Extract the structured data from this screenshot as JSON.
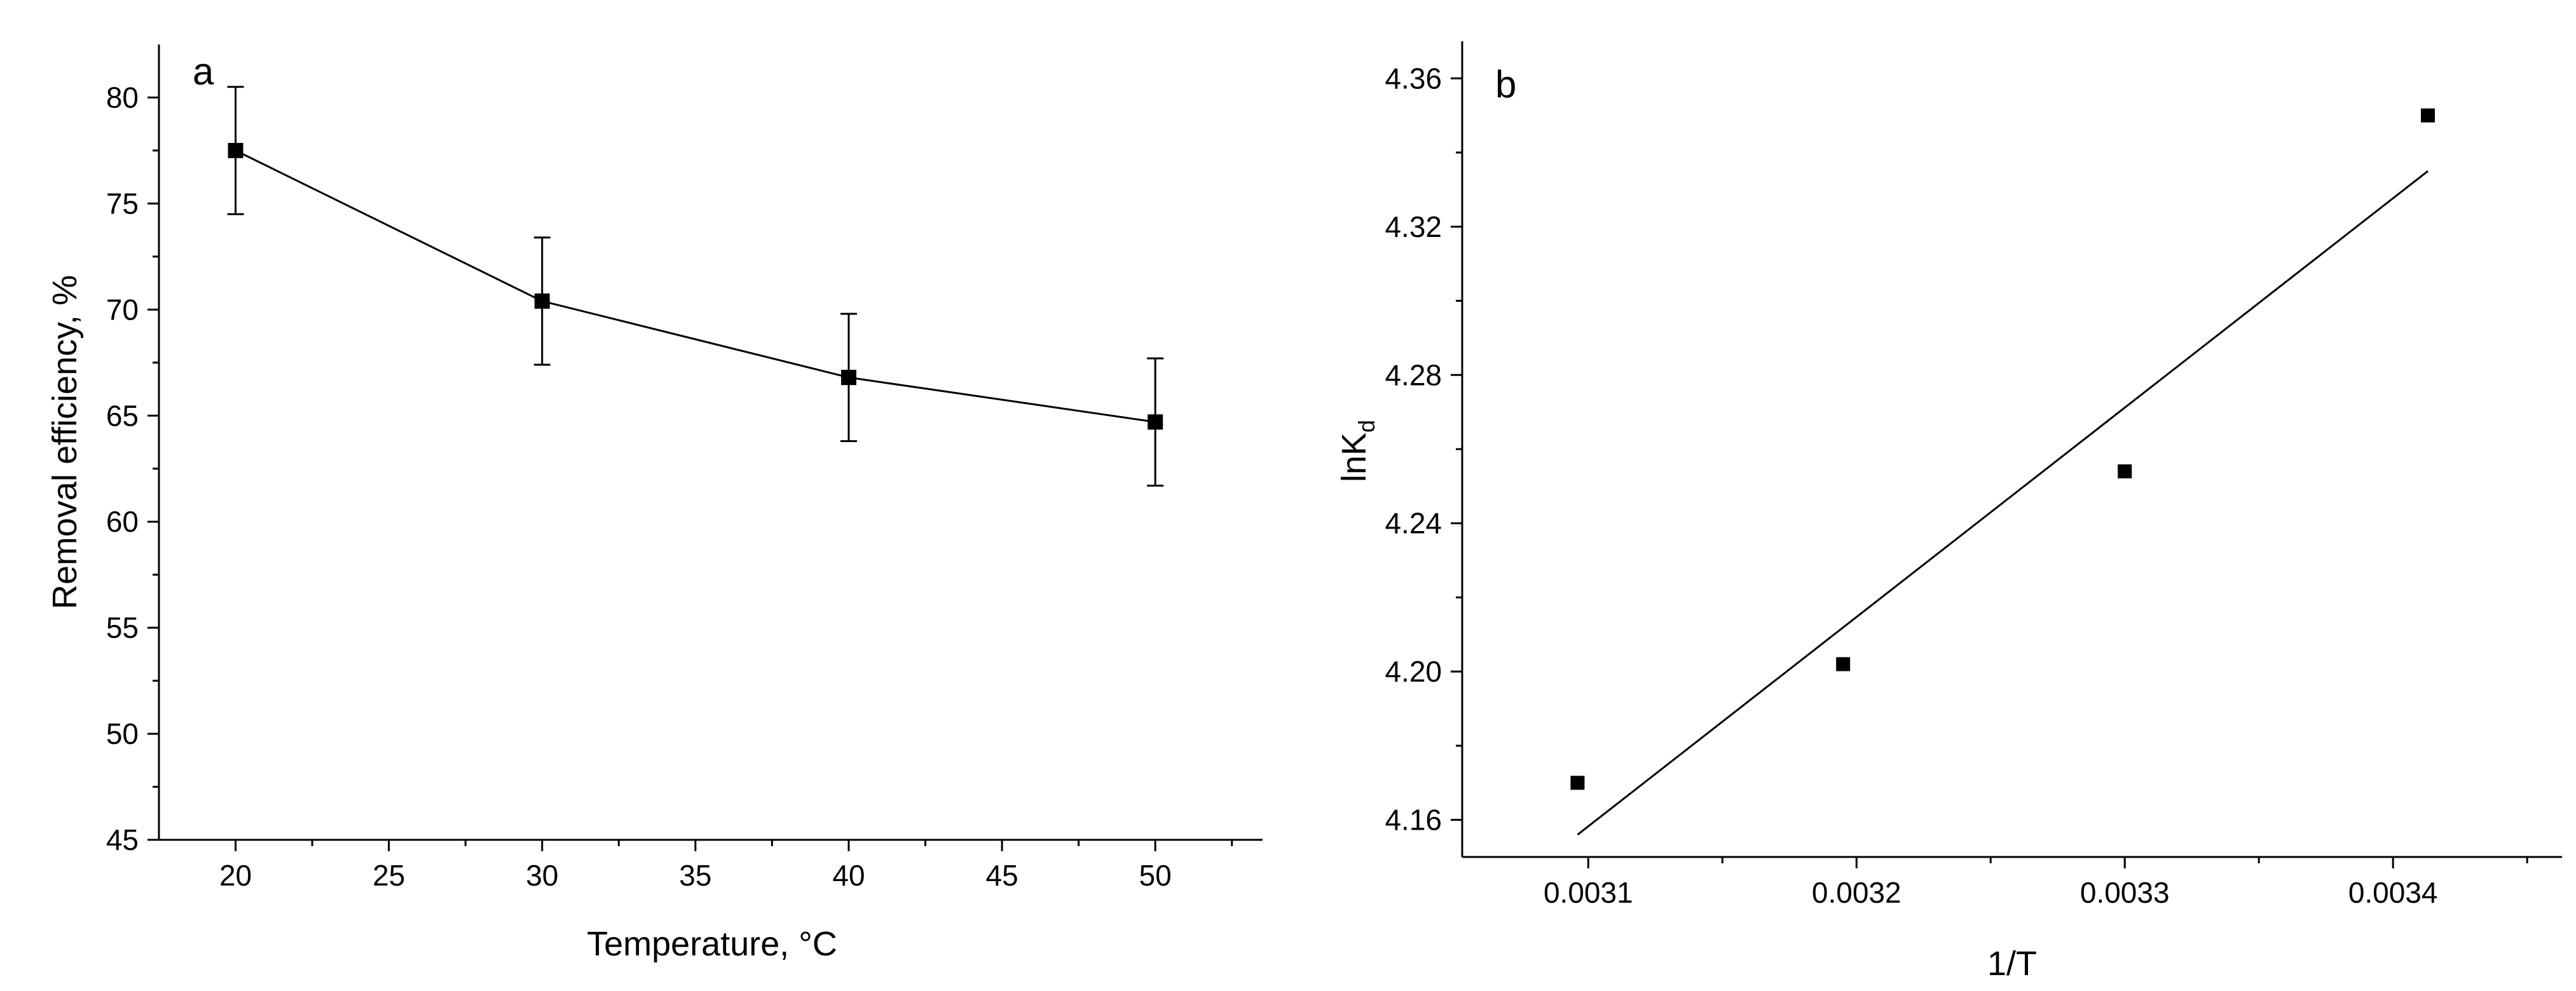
{
  "chart_data": [
    {
      "type": "line",
      "panel_label": "a",
      "xlabel": "Temperature, °C",
      "ylabel": "Removal efficiency, %",
      "xlim": [
        17.5,
        53.5
      ],
      "ylim": [
        45,
        82.5
      ],
      "xticks": [
        20,
        25,
        30,
        35,
        40,
        45,
        50
      ],
      "yticks": [
        45,
        50,
        55,
        60,
        65,
        70,
        75,
        80
      ],
      "grid": false,
      "marker": "square",
      "color": "#000000",
      "series": [
        {
          "x": [
            20,
            30,
            40,
            50
          ],
          "y": [
            77.5,
            70.4,
            66.8,
            64.7
          ],
          "error": [
            3.0,
            3.0,
            3.0,
            3.0
          ]
        }
      ]
    },
    {
      "type": "scatter",
      "panel_label": "b",
      "xlabel": "1/T",
      "ylabel": "lnK",
      "ylabel_subscript": "d",
      "xlim": [
        0.003053,
        0.003463
      ],
      "ylim": [
        4.15,
        4.37
      ],
      "xticks": [
        "0.0031",
        "0.0032",
        "0.0033",
        "0.0034"
      ],
      "yticks": [
        "4.16",
        "4.20",
        "4.24",
        "4.28",
        "4.32",
        "4.36"
      ],
      "grid": false,
      "marker": "square",
      "color": "#000000",
      "series": [
        {
          "x": [
            0.003096,
            0.003195,
            0.0033,
            0.003413
          ],
          "y": [
            4.17,
            4.202,
            4.254,
            4.35
          ]
        }
      ],
      "fit_line": {
        "x": [
          0.003096,
          0.003413
        ],
        "y": [
          4.156,
          4.335
        ]
      }
    }
  ]
}
